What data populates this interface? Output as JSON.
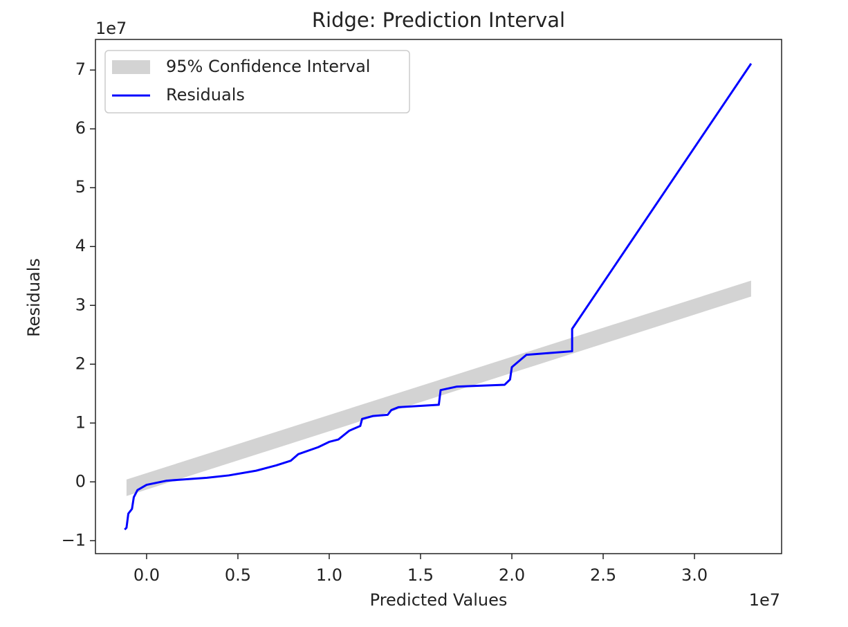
{
  "chart_data": {
    "type": "line",
    "title": "Ridge: Prediction Interval",
    "x_label": "Predicted Values",
    "y_label": "Residuals",
    "x_offset_label": "1e7",
    "y_offset_label": "1e7",
    "xlim": [
      -0.28,
      3.477
    ],
    "ylim": [
      -1.22,
      7.52
    ],
    "xticks": [
      {
        "value": 0,
        "label": "0.0"
      },
      0.5,
      {
        "value": 1,
        "label": "1.0"
      },
      1.5,
      {
        "value": 2,
        "label": "2.0"
      },
      2.5,
      {
        "value": 3,
        "label": "3.0"
      }
    ],
    "yticks": [
      {
        "value": -1,
        "label": "−1"
      },
      0,
      1,
      2,
      3,
      4,
      5,
      6,
      7
    ],
    "grid": false,
    "legend": "upper left",
    "series": [
      {
        "name": "95% Confidence Interval",
        "kind": "band",
        "color": "#d3d3d3",
        "x": [
          -0.11,
          3.31
        ],
        "lower": [
          -0.24,
          3.15
        ],
        "upper": [
          0.04,
          3.42
        ]
      },
      {
        "name": "Residuals",
        "kind": "line",
        "color": "#0000ff",
        "x": [
          -0.12,
          -0.11,
          -0.1,
          -0.08,
          -0.07,
          -0.05,
          0,
          0.11,
          0.33,
          0.45,
          0.6,
          0.71,
          0.79,
          0.83,
          0.94,
          1.0,
          1.05,
          1.11,
          1.17,
          1.18,
          1.24,
          1.32,
          1.34,
          1.38,
          1.6,
          1.61,
          1.7,
          1.96,
          1.99,
          2.0,
          2.08,
          2.33,
          2.33,
          3.31
        ],
        "values": [
          -0.81,
          -0.78,
          -0.54,
          -0.46,
          -0.26,
          -0.14,
          -0.05,
          0.02,
          0.07,
          0.11,
          0.19,
          0.28,
          0.36,
          0.47,
          0.59,
          0.68,
          0.72,
          0.87,
          0.95,
          1.07,
          1.12,
          1.14,
          1.22,
          1.27,
          1.31,
          1.56,
          1.62,
          1.65,
          1.74,
          1.95,
          2.16,
          2.22,
          2.6,
          7.11
        ]
      }
    ]
  }
}
